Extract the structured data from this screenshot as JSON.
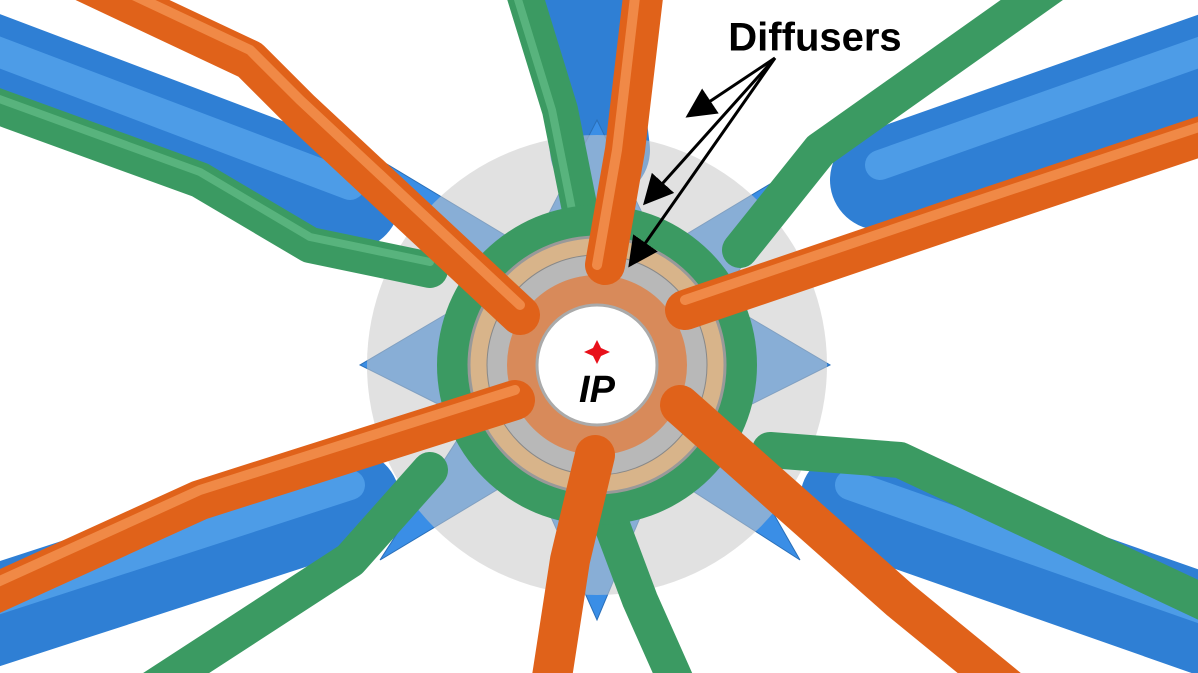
{
  "labels": {
    "diffusers": "Diffusers",
    "ip": "IP"
  }
}
